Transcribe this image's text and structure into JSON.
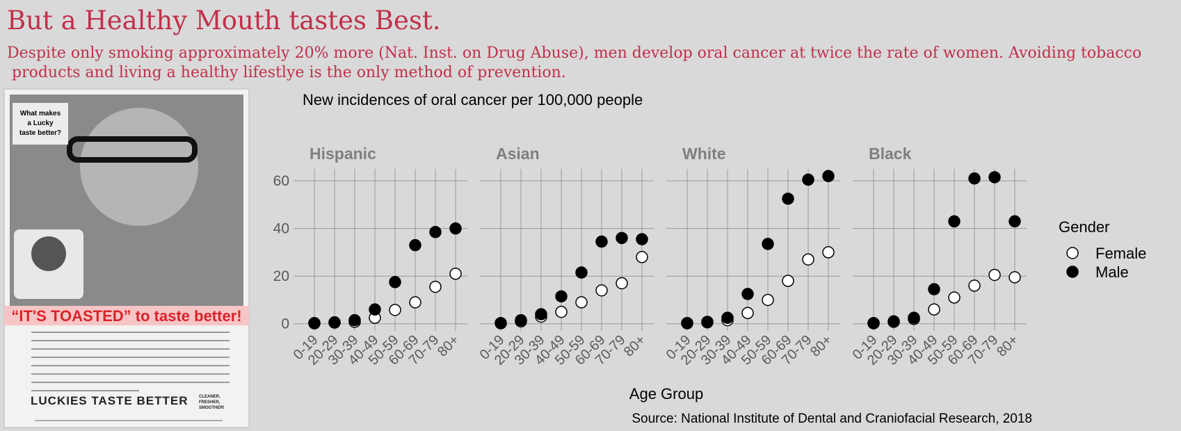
{
  "header": {
    "title": "But a Healthy Mouth tastes Best.",
    "subtitle_lines": [
      "Despite only smoking approximately 20% more (Nat. Inst. on Drug Abuse), men develop oral cancer at twice the rate of women. Avoiding tobacco",
      " products and living a healthy lifestlye is the only method of prevention."
    ]
  },
  "ad": {
    "question": [
      "What makes",
      "a Lucky",
      "taste better?"
    ],
    "headline": "“IT'S TOASTED” to taste better!",
    "slogan": "LUCKIES TASTE BETTER",
    "tagline": [
      "CLEANER,",
      "FRESHER,",
      "SMOOTHER!"
    ]
  },
  "chart_data": {
    "type": "scatter",
    "title": "New incidences of oral cancer per 100,000 people",
    "x_label": "Age Group",
    "source": "Source: National Institute of Dental and Craniofacial Research, 2018",
    "legend_title": "Gender",
    "panels": [
      "Hispanic",
      "Asian",
      "White",
      "Black"
    ],
    "categories": [
      "0-19",
      "20-29",
      "30-39",
      "40-49",
      "50-59",
      "60-69",
      "70-79",
      "80+"
    ],
    "ylim": [
      -3,
      65
    ],
    "yticks": [
      0,
      20,
      40,
      60
    ],
    "grid": true,
    "series": [
      {
        "name": "Female",
        "color": "#000000",
        "filled": false,
        "values": [
          [
            0.3,
            0.6,
            0.8,
            2.5,
            5.8,
            9,
            15.5,
            21
          ],
          [
            0.3,
            1,
            3,
            5,
            9,
            14,
            17,
            28
          ],
          [
            0.3,
            0.6,
            1.5,
            4.5,
            10,
            18,
            27,
            30
          ],
          [
            0.3,
            0.8,
            2,
            6,
            11,
            16,
            20.5,
            19.5
          ]
        ]
      },
      {
        "name": "Male",
        "color": "#000000",
        "filled": true,
        "values": [
          [
            0.2,
            0.5,
            1.5,
            6,
            17.5,
            33,
            38.5,
            40
          ],
          [
            0.2,
            1.5,
            4,
            11.5,
            21.5,
            34.5,
            36,
            35.5
          ],
          [
            0.2,
            0.8,
            2.5,
            12.5,
            33.5,
            52.5,
            60.5,
            62
          ],
          [
            0.2,
            1,
            2.5,
            14.5,
            43,
            61,
            61.5,
            43
          ]
        ]
      }
    ]
  }
}
